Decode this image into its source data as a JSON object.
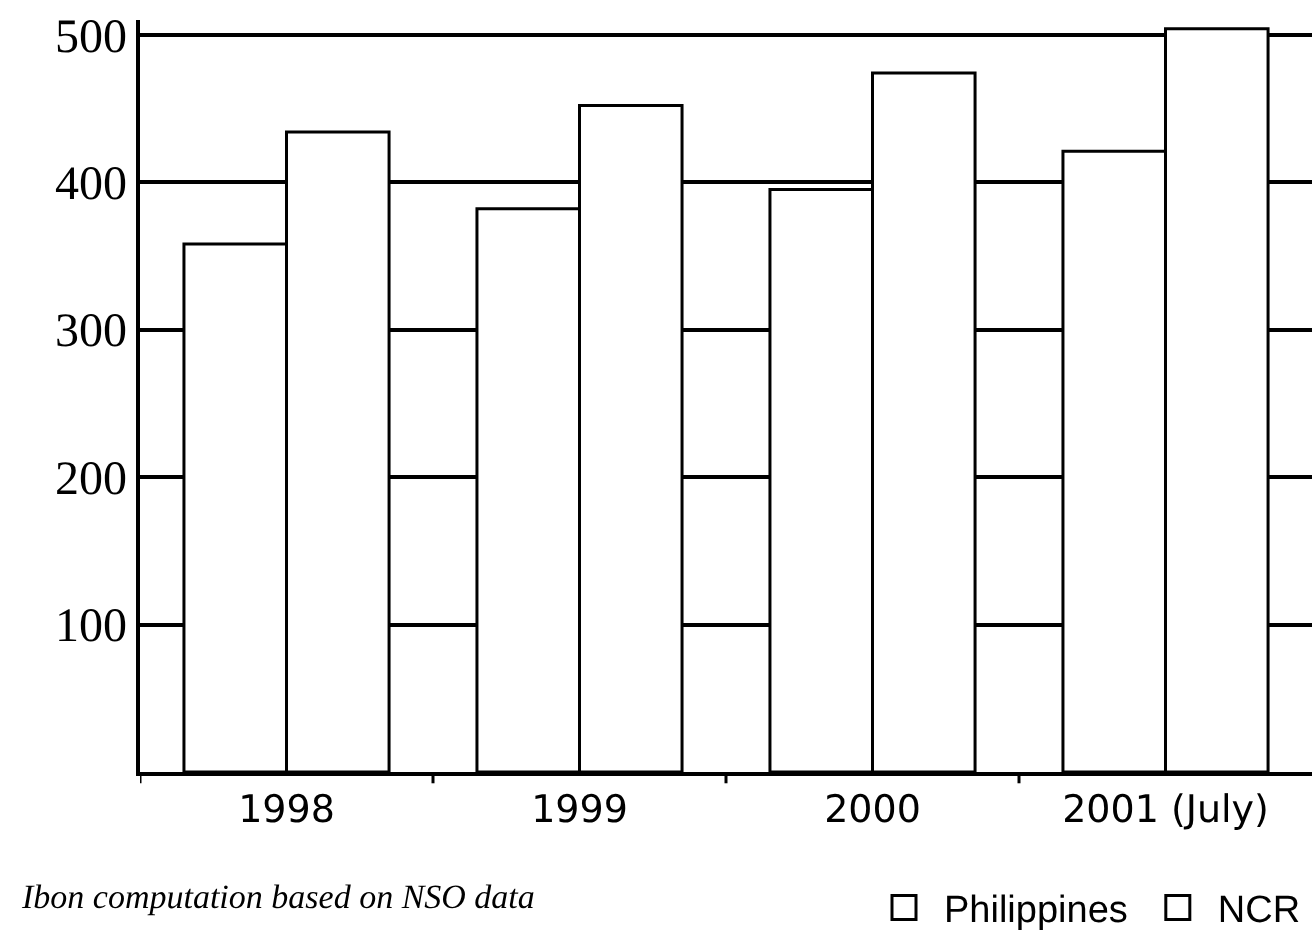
{
  "chart_data": {
    "type": "bar",
    "categories": [
      "1998",
      "1999",
      "2000",
      "2001 (July)"
    ],
    "series": [
      {
        "name": "Philippines",
        "color": "#ffffff",
        "values": [
          358,
          382,
          395,
          421
        ]
      },
      {
        "name": "NCR",
        "color": "#ffffff",
        "values": [
          434,
          452,
          474,
          504
        ]
      }
    ],
    "ylim": [
      0,
      510
    ],
    "yticks": [
      100,
      200,
      300,
      400,
      500
    ],
    "grid": "y",
    "legend": "bottom right",
    "annotations": [
      "Ibon computation based on NSO data"
    ]
  }
}
